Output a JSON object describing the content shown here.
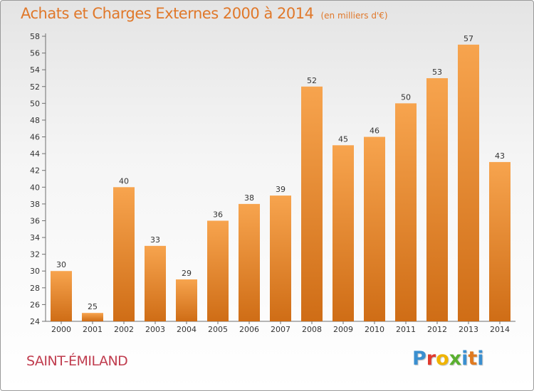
{
  "chart_data": {
    "type": "bar",
    "title": "Achats et Charges Externes 2000 à 2014",
    "subtitle": "(en milliers d'€)",
    "categories": [
      "2000",
      "2001",
      "2002",
      "2003",
      "2004",
      "2005",
      "2006",
      "2007",
      "2008",
      "2009",
      "2010",
      "2011",
      "2012",
      "2013",
      "2014"
    ],
    "values": [
      30,
      25,
      40,
      33,
      29,
      36,
      38,
      39,
      52,
      45,
      46,
      50,
      53,
      57,
      43
    ],
    "ylim": [
      24,
      58
    ],
    "yticks": [
      24,
      26,
      28,
      30,
      32,
      34,
      36,
      38,
      40,
      42,
      44,
      46,
      48,
      50,
      52,
      54,
      56,
      58
    ],
    "grid": false,
    "bar_color_top": "#f7a44e",
    "bar_color_bottom": "#cf6d16"
  },
  "footer": {
    "commune": "SAINT-ÉMILAND",
    "logo_letters": [
      {
        "char": "P",
        "color": "#3a8fd0"
      },
      {
        "char": "r",
        "color": "#e03a2f"
      },
      {
        "char": "o",
        "color": "#f0b400"
      },
      {
        "char": "x",
        "color": "#5ab030"
      },
      {
        "char": "i",
        "color": "#3a8fd0"
      },
      {
        "char": "t",
        "color": "#e07a20"
      },
      {
        "char": "i",
        "color": "#3a8fd0"
      }
    ]
  }
}
